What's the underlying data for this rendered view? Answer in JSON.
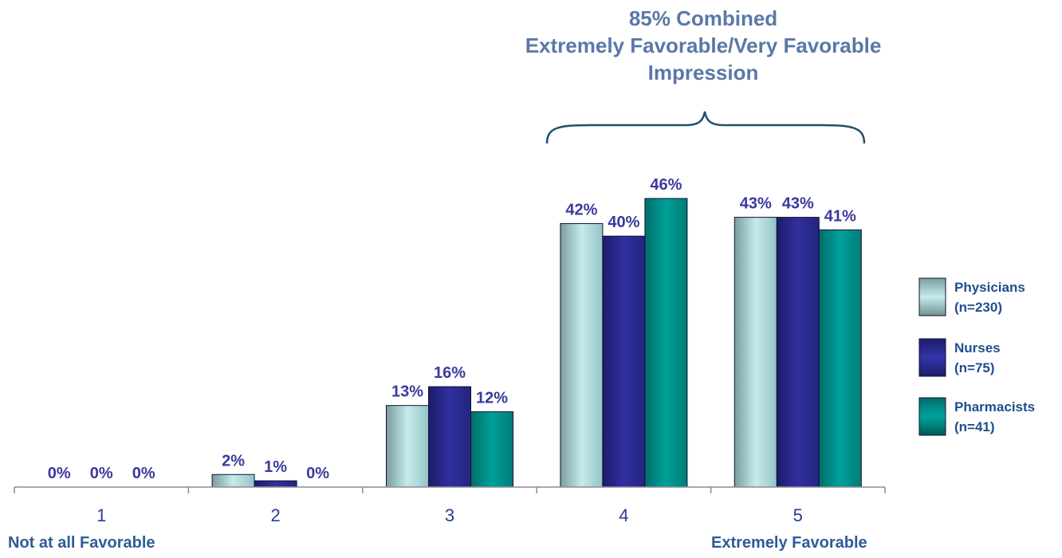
{
  "annotation": {
    "line1": "85% Combined",
    "line2": "Extremely Favorable/Very Favorable",
    "line3": "Impression"
  },
  "scale_labels": {
    "low": "Not at all Favorable",
    "high": "Extremely Favorable"
  },
  "colors": {
    "physicians": "#a9d3d4",
    "nurses": "#2a2a8c",
    "pharmacists": "#008a86",
    "data_label": "#3a3a9c",
    "annotation": "#5a78a8",
    "axis": "#8c8c9c"
  },
  "chart_data": {
    "type": "bar",
    "categories": [
      "1",
      "2",
      "3",
      "4",
      "5"
    ],
    "series": [
      {
        "name": "Physicians",
        "legend_label": [
          "Physicians",
          "(n=230)"
        ],
        "values": [
          0,
          2,
          13,
          42,
          43
        ],
        "labels": [
          "0%",
          "2%",
          "13%",
          "42%",
          "43%"
        ]
      },
      {
        "name": "Nurses",
        "legend_label": [
          "Nurses",
          "(n=75)"
        ],
        "values": [
          0,
          1,
          16,
          40,
          43
        ],
        "labels": [
          "0%",
          "1%",
          "16%",
          "40%",
          "43%"
        ]
      },
      {
        "name": "Pharmacists",
        "legend_label": [
          "Pharmacists",
          "(n=41)"
        ],
        "values": [
          0,
          0,
          12,
          46,
          41
        ],
        "labels": [
          "0%",
          "0%",
          "12%",
          "46%",
          "41%"
        ]
      }
    ],
    "ylim": [
      0,
      48
    ],
    "grid": false,
    "legend": "right"
  }
}
